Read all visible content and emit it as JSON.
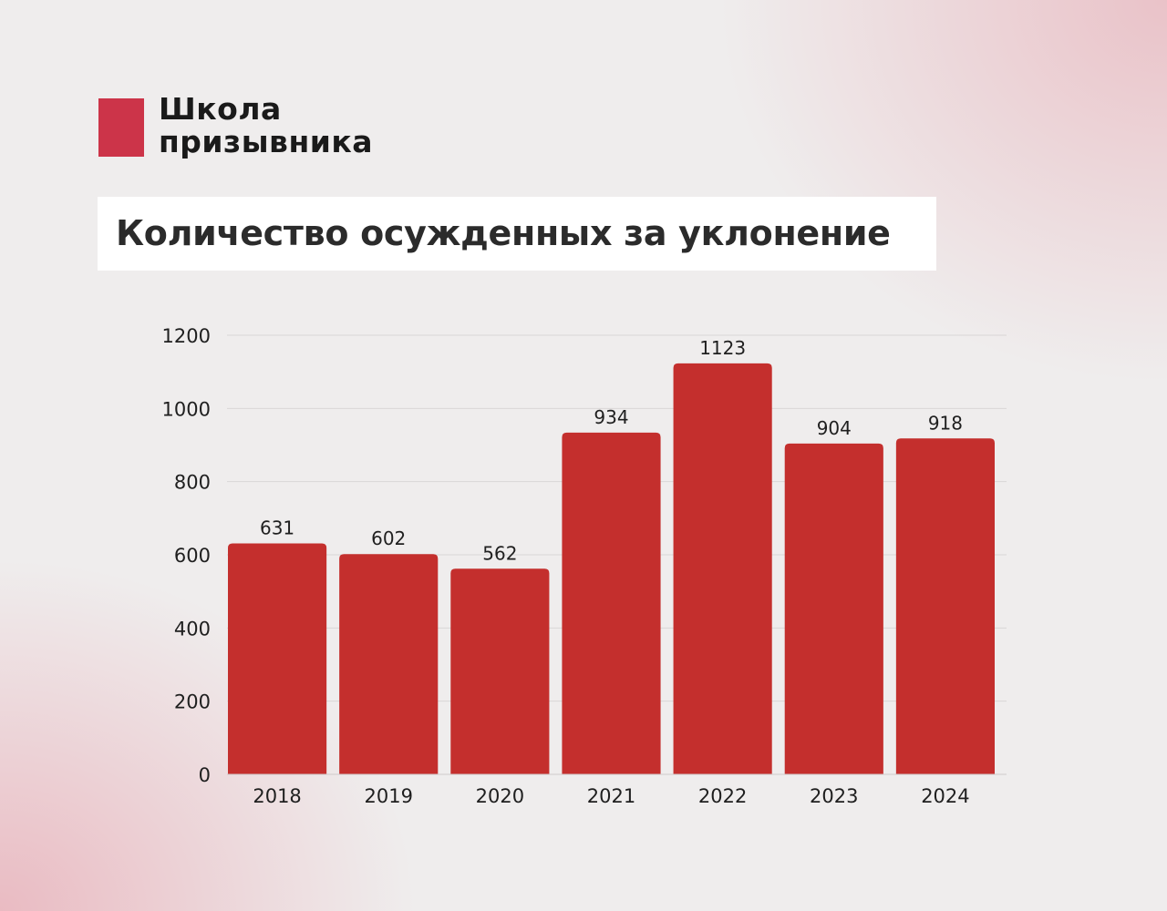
{
  "brand": {
    "line1": "Школа",
    "line2": "призывника",
    "color": "#cc3449"
  },
  "chart_data": {
    "type": "bar",
    "title": "Количество осужденных за уклонение",
    "categories": [
      "2018",
      "2019",
      "2020",
      "2021",
      "2022",
      "2023",
      "2024"
    ],
    "values": [
      631,
      602,
      562,
      934,
      1123,
      904,
      918
    ],
    "ylim": [
      0,
      1200
    ],
    "yticks": [
      0,
      200,
      400,
      600,
      800,
      1000,
      1200
    ],
    "grid": true,
    "bar_color": "#c42f2d",
    "data_labels": true
  }
}
